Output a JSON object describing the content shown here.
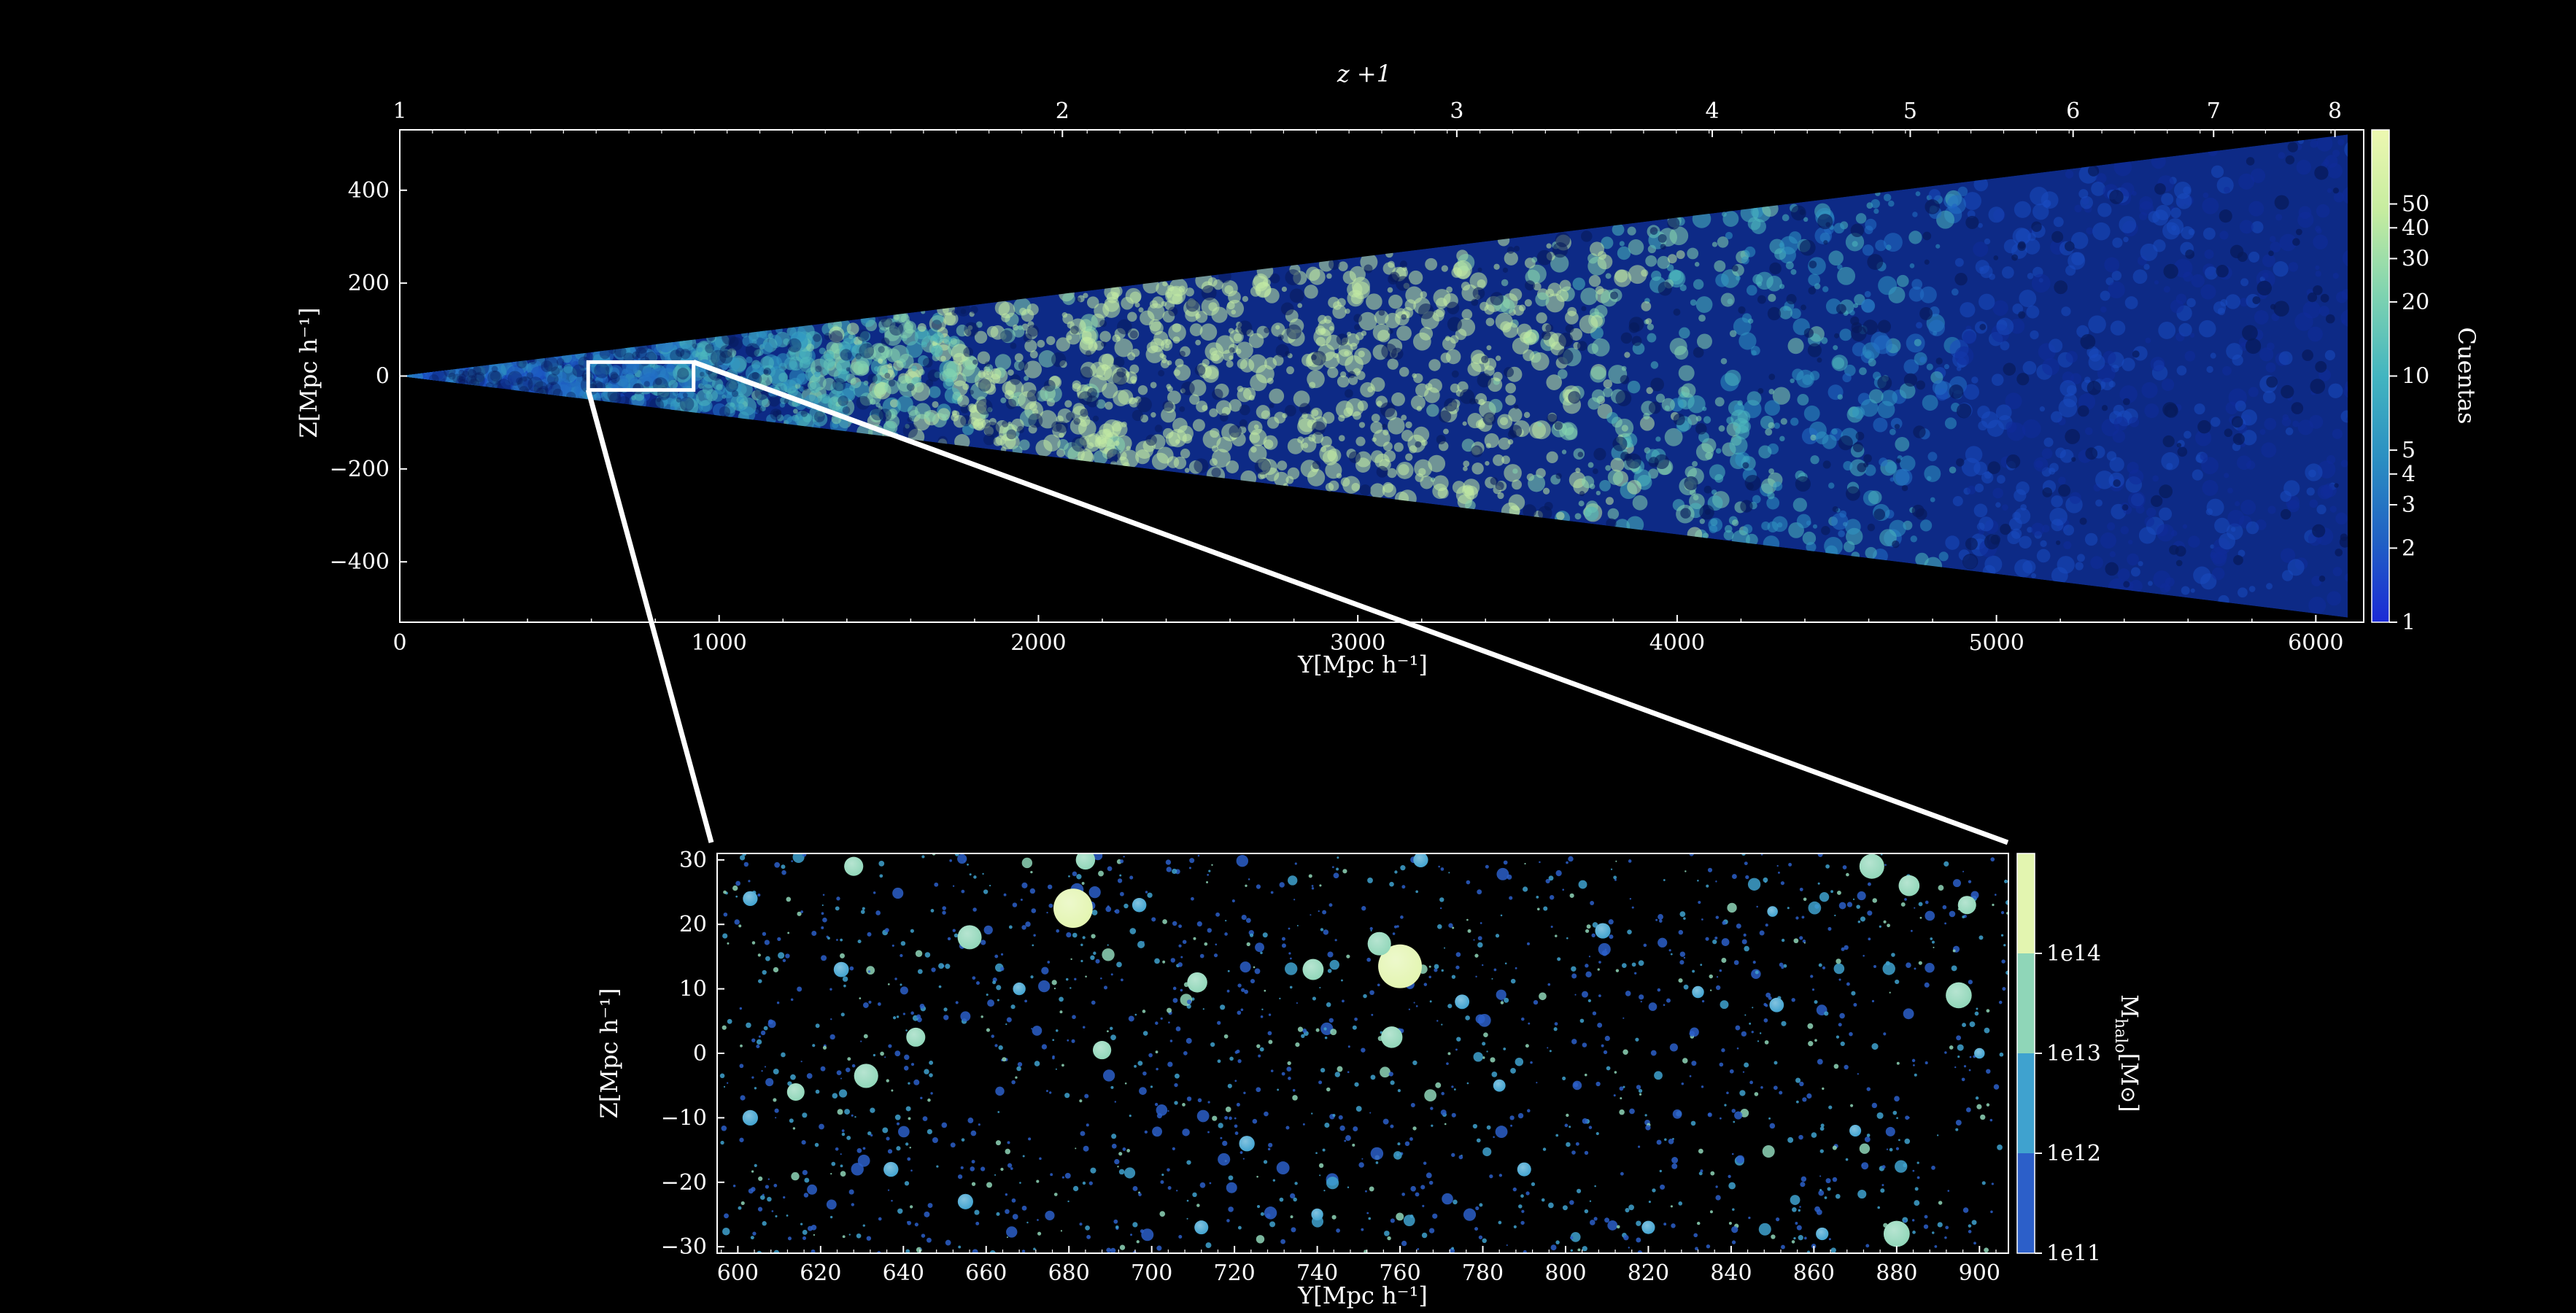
{
  "chart_data": [
    {
      "type": "heatmap",
      "panel": "lightcone-density",
      "top_axis": {
        "label": "z +1",
        "ticks": [
          1,
          2,
          3,
          4,
          5,
          6,
          7,
          8
        ]
      },
      "xlabel": "Y[Mpc h⁻¹]",
      "ylabel": "Z[Mpc h⁻¹]",
      "xlim": [
        0,
        6150
      ],
      "ylim": [
        -530,
        530
      ],
      "xticks": [
        0,
        1000,
        2000,
        3000,
        4000,
        5000,
        6000
      ],
      "yticks": [
        400,
        200,
        0,
        -200,
        -400
      ],
      "cone": {
        "apex_y": 0,
        "end_y": 6100,
        "half_width_at_end": 520
      },
      "colorbar": {
        "label": "Cuentas",
        "scale": "log",
        "range": [
          1,
          100
        ],
        "ticks": [
          1,
          2,
          3,
          4,
          5,
          10,
          20,
          30,
          40,
          50
        ],
        "colors": [
          "#1b2ad6",
          "#2161c4",
          "#2b8fc2",
          "#43b5c0",
          "#7fd3b0",
          "#c5ec9f",
          "#edf8b1"
        ]
      },
      "zoom_box": {
        "y": [
          590,
          920
        ],
        "z": [
          -30,
          30
        ]
      }
    },
    {
      "type": "scatter",
      "panel": "halo-zoom",
      "xlabel": "Y[Mpc h⁻¹]",
      "ylabel": "Z[Mpc h⁻¹]",
      "xlim": [
        595,
        907
      ],
      "ylim": [
        -31,
        31
      ],
      "xticks": [
        600,
        620,
        640,
        660,
        680,
        700,
        720,
        740,
        760,
        780,
        800,
        820,
        840,
        860,
        880,
        900
      ],
      "yticks": [
        30,
        20,
        10,
        0,
        -10,
        -20,
        -30
      ],
      "colorbar": {
        "label": "M_halo[M⊙]",
        "scale": "log",
        "boundaries": [
          "1e11",
          "1e12",
          "1e13",
          "1e14"
        ],
        "colors": [
          "#2c5fc9",
          "#3fa2cf",
          "#8fd6b8",
          "#e3f5b0"
        ]
      },
      "points": [
        {
          "y": 681,
          "z": 22.5,
          "m": "1e14"
        },
        {
          "y": 760,
          "z": 13.5,
          "m": "1e14"
        },
        {
          "y": 739,
          "z": 13,
          "m": "1e13"
        },
        {
          "y": 755,
          "z": 17,
          "m": "1e13"
        },
        {
          "y": 643,
          "z": 2.5,
          "m": "1e13"
        },
        {
          "y": 758,
          "z": 2.5,
          "m": "1e13"
        },
        {
          "y": 711,
          "z": 11,
          "m": "1e13"
        },
        {
          "y": 880,
          "z": -28,
          "m": "1e13"
        },
        {
          "y": 874,
          "z": 29,
          "m": "1e13"
        },
        {
          "y": 631,
          "z": -3.5,
          "m": "1e13"
        },
        {
          "y": 656,
          "z": 18,
          "m": "1e13"
        },
        {
          "y": 688,
          "z": 0.5,
          "m": "1e13"
        },
        {
          "y": 637,
          "z": -18,
          "m": "1e12"
        },
        {
          "y": 614,
          "z": -6,
          "m": "1e13"
        },
        {
          "y": 862,
          "z": -28,
          "m": "1e12"
        },
        {
          "y": 740,
          "z": -25,
          "m": "1e12"
        },
        {
          "y": 784,
          "z": -5,
          "m": "1e12"
        },
        {
          "y": 832,
          "z": 9.5,
          "m": "1e12"
        },
        {
          "y": 900,
          "z": 0,
          "m": "1e12"
        },
        {
          "y": 628,
          "z": 29,
          "m": "1e13"
        },
        {
          "y": 684,
          "z": 30,
          "m": "1e13"
        },
        {
          "y": 765,
          "z": 30,
          "m": "1e12"
        },
        {
          "y": 883,
          "z": 26,
          "m": "1e13"
        },
        {
          "y": 897,
          "z": 23,
          "m": "1e13"
        },
        {
          "y": 851,
          "z": 7.5,
          "m": "1e12"
        },
        {
          "y": 809,
          "z": 19,
          "m": "1e12"
        },
        {
          "y": 603,
          "z": 24,
          "m": "1e12"
        },
        {
          "y": 603,
          "z": -10,
          "m": "1e12"
        },
        {
          "y": 723,
          "z": -14,
          "m": "1e12"
        },
        {
          "y": 668,
          "z": 10,
          "m": "1e12"
        },
        {
          "y": 697,
          "z": 23,
          "m": "1e12"
        },
        {
          "y": 850,
          "z": 22,
          "m": "1e12"
        },
        {
          "y": 820,
          "z": -27,
          "m": "1e12"
        },
        {
          "y": 895,
          "z": 9,
          "m": "1e13"
        },
        {
          "y": 870,
          "z": -12,
          "m": "1e12"
        },
        {
          "y": 775,
          "z": 8,
          "m": "1e12"
        },
        {
          "y": 790,
          "z": -18,
          "m": "1e12"
        },
        {
          "y": 712,
          "z": -27,
          "m": "1e12"
        },
        {
          "y": 655,
          "z": -23,
          "m": "1e12"
        },
        {
          "y": 625,
          "z": 13,
          "m": "1e12"
        }
      ]
    }
  ]
}
